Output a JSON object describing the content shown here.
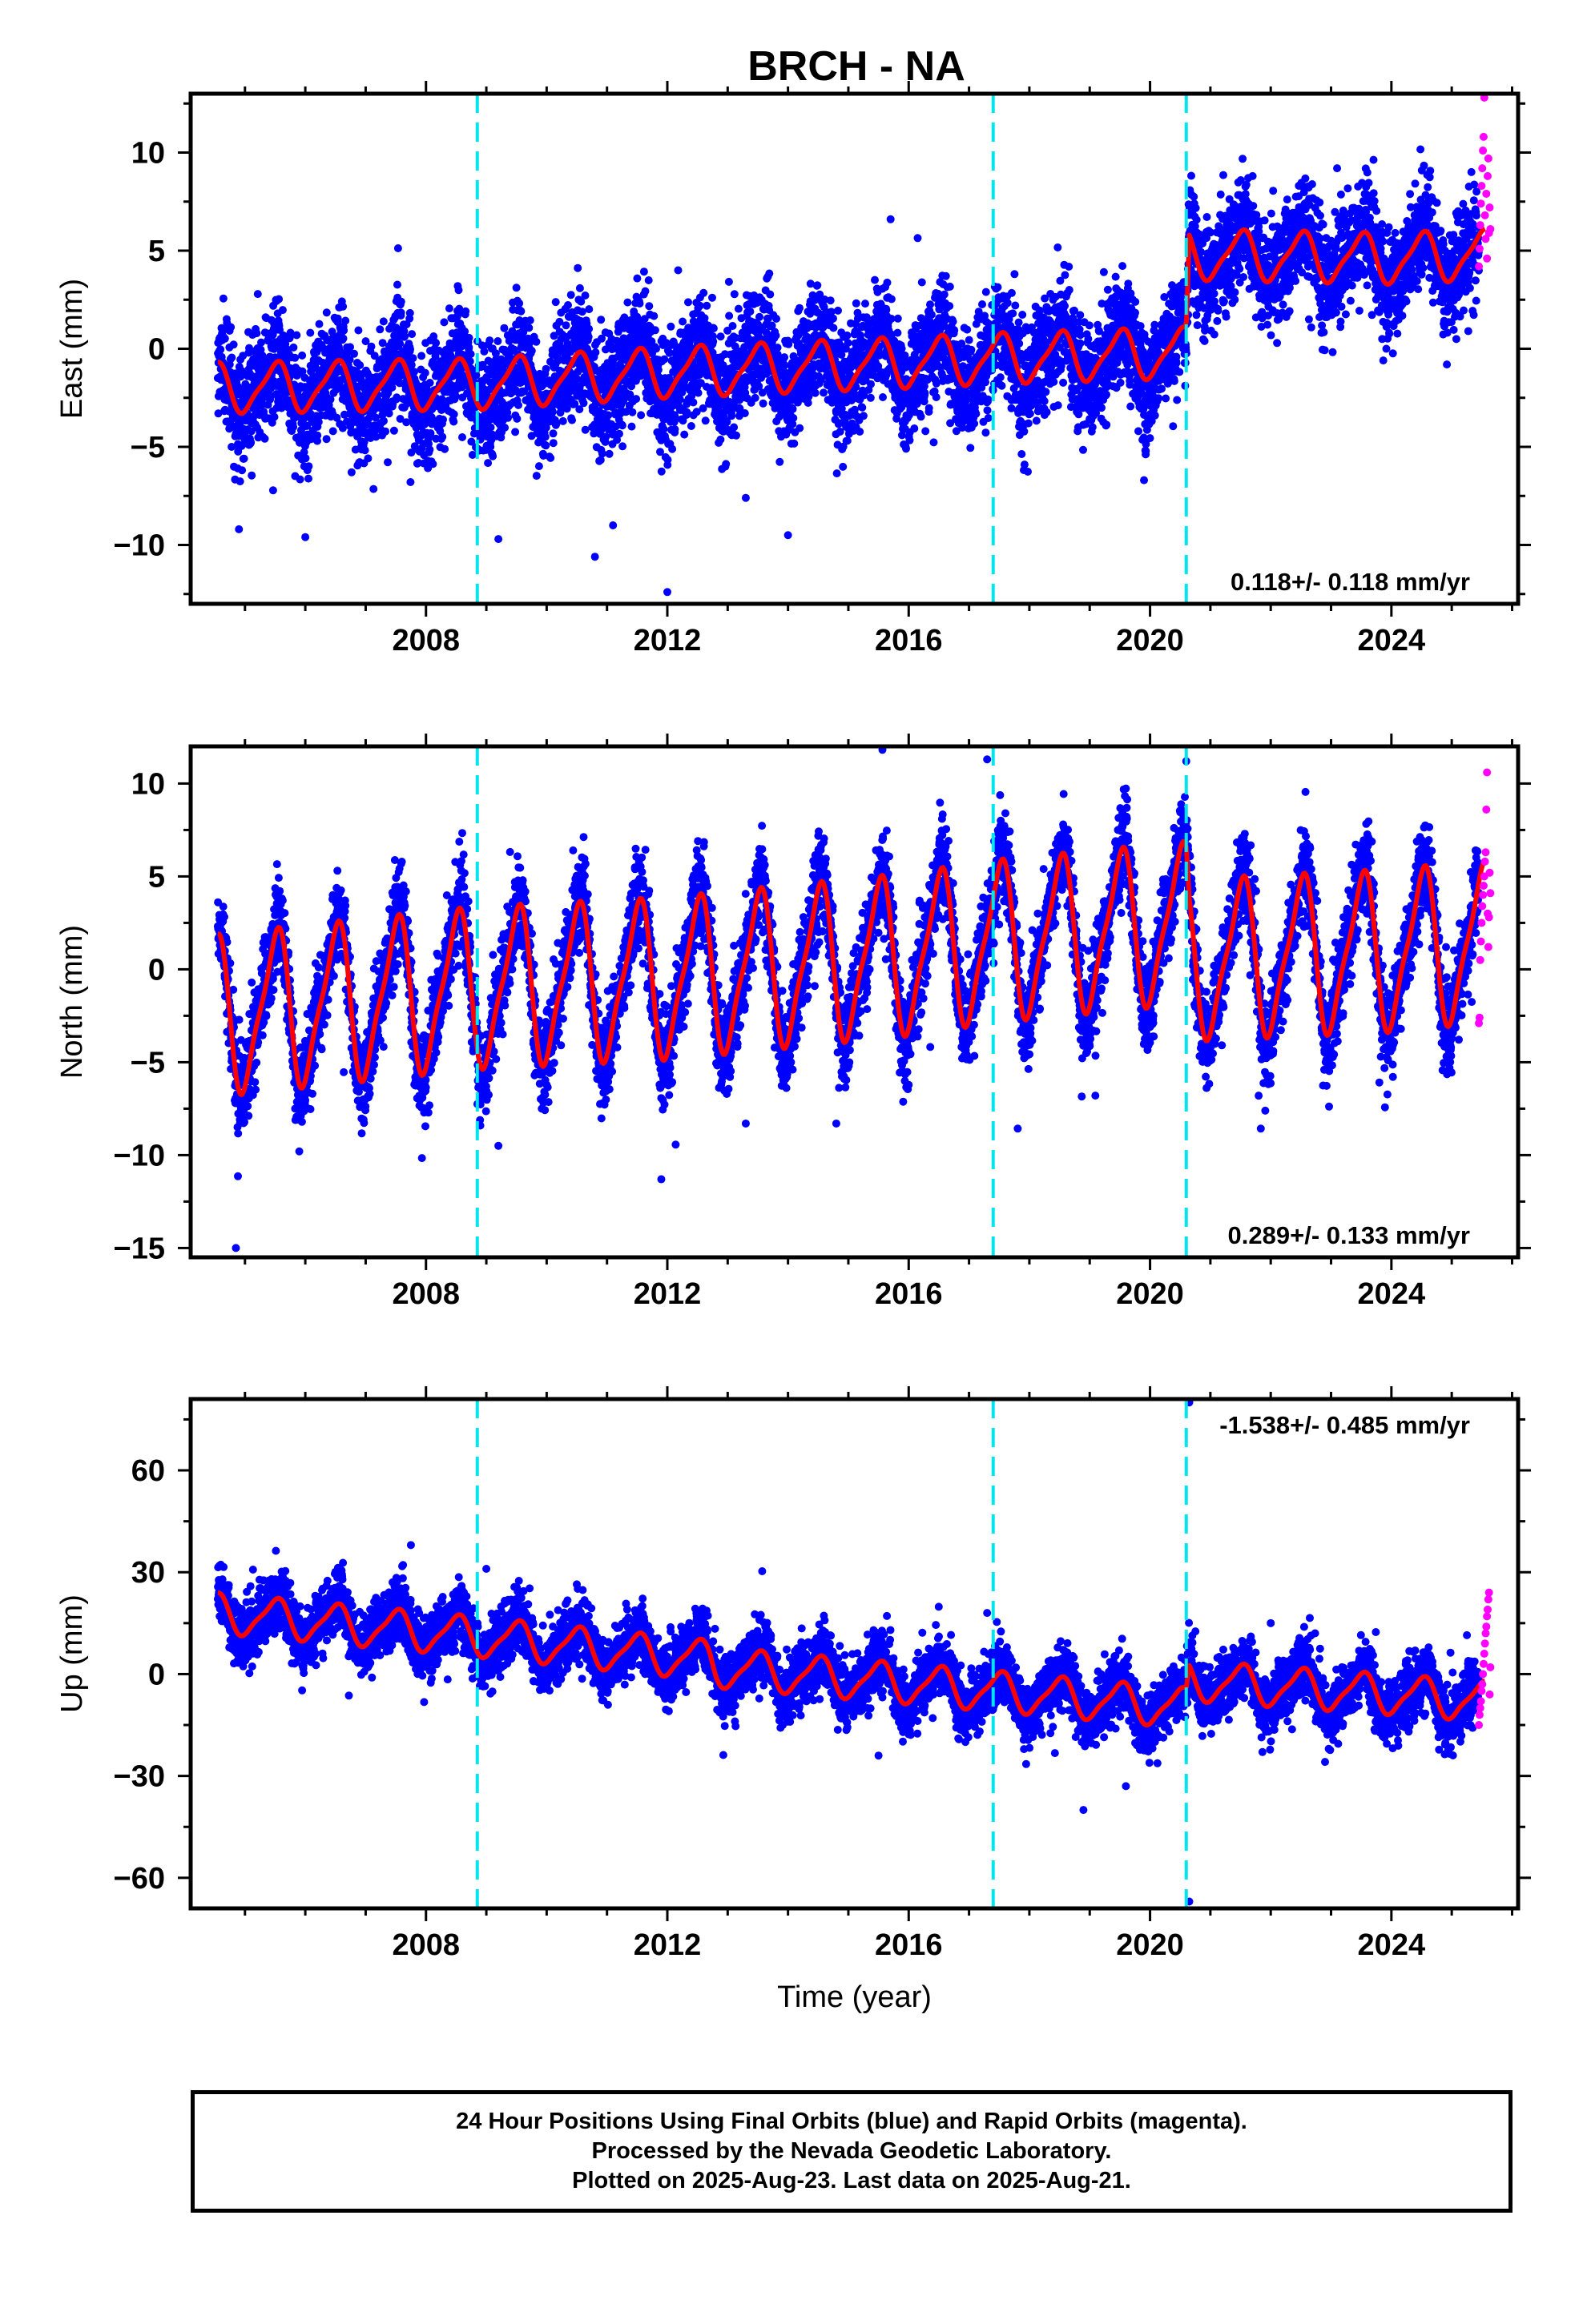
{
  "colors": {
    "final_orbits": "#0000ff",
    "rapid_orbits": "#ff00ff",
    "model": "#ff0000",
    "equipment_change": "#00e5ee",
    "frame": "#000000"
  },
  "caption": {
    "line1": "24 Hour Positions Using Final Orbits (blue) and Rapid Orbits (magenta).",
    "line2": "Processed by the Nevada Geodetic Laboratory.",
    "line3": "Plotted on 2025-Aug-23. Last data on 2025-Aug-21."
  },
  "chart_data": [
    {
      "type": "scatter",
      "title": "BRCH - NA",
      "ylabel": "East (mm)",
      "xlabel": "",
      "xlim": [
        2004.1,
        2026.1
      ],
      "ylim": [
        -13,
        13
      ],
      "xticks": [
        2008,
        2012,
        2016,
        2020,
        2024
      ],
      "yticks": [
        -10,
        -5,
        0,
        5,
        10
      ],
      "rate_label": "0.118+/- 0.118 mm/yr",
      "rate_position": "bottom-right",
      "steps_years": [
        2008.85,
        2017.4,
        2020.6
      ],
      "series": [
        {
          "name": "Final Orbits",
          "kind": "points",
          "sample_count": 7600,
          "trend_anchor_points": [
            [
              2004.5,
              -2.0
            ],
            [
              2008.85,
              -1.8
            ],
            [
              2012.0,
              -1.2
            ],
            [
              2016.0,
              -0.7
            ],
            [
              2017.4,
              -0.5
            ],
            [
              2020.6,
              -0.2
            ],
            [
              2020.65,
              4.8
            ],
            [
              2024.0,
              4.6
            ],
            [
              2025.5,
              4.8
            ]
          ],
          "seasonal_amplitude": 1.3,
          "scatter_sd": 1.4,
          "outliers": [
            [
              2004.9,
              -9.2
            ],
            [
              2006.0,
              -9.6
            ],
            [
              2009.2,
              -9.7
            ],
            [
              2010.8,
              -10.6
            ],
            [
              2011.1,
              -9.0
            ],
            [
              2012.0,
              -12.4
            ],
            [
              2013.3,
              -7.6
            ],
            [
              2014.0,
              -9.5
            ],
            [
              2015.7,
              6.6
            ],
            [
              2018.8,
              -4.2
            ],
            [
              2019.9,
              -6.7
            ],
            [
              2021.7,
              8.8
            ],
            [
              2023.1,
              9.2
            ]
          ]
        },
        {
          "name": "Rapid Orbits",
          "kind": "points",
          "x_range": [
            2025.45,
            2025.64
          ],
          "values": [
            4.2,
            5.1,
            6.3,
            7.4,
            8.3,
            9.2,
            10.1,
            10.8,
            12.8,
            6.8,
            5.6,
            7.9,
            4.6,
            8.8,
            9.7,
            5.9,
            7.2,
            6.1
          ]
        },
        {
          "name": "Model",
          "kind": "line",
          "seasonal_amplitude": 1.2
        }
      ]
    },
    {
      "type": "scatter",
      "title": "",
      "ylabel": "North (mm)",
      "xlabel": "",
      "xlim": [
        2004.1,
        2026.1
      ],
      "ylim": [
        -15.5,
        12
      ],
      "xticks": [
        2008,
        2012,
        2016,
        2020,
        2024
      ],
      "yticks": [
        -15,
        -10,
        -5,
        0,
        5,
        10
      ],
      "rate_label": "0.289+/- 0.133 mm/yr",
      "rate_position": "bottom-right",
      "steps_years": [
        2008.85,
        2017.4,
        2020.6
      ],
      "series": [
        {
          "name": "Final Orbits",
          "kind": "points",
          "sample_count": 7600,
          "trend_anchor_points": [
            [
              2004.5,
              -2.5
            ],
            [
              2008.85,
              -1.0
            ],
            [
              2012.0,
              -0.5
            ],
            [
              2016.0,
              0.8
            ],
            [
              2017.4,
              1.5
            ],
            [
              2020.6,
              2.5
            ],
            [
              2020.65,
              0.5
            ],
            [
              2024.0,
              1.0
            ],
            [
              2025.5,
              1.5
            ]
          ],
          "seasonal_amplitude": 4.2,
          "scatter_sd": 1.2,
          "outliers": [
            [
              2004.85,
              -15.0
            ],
            [
              2005.9,
              -9.8
            ],
            [
              2009.2,
              -9.5
            ],
            [
              2011.9,
              -11.3
            ],
            [
              2012.5,
              6.1
            ],
            [
              2013.3,
              -8.3
            ],
            [
              2014.8,
              -8.3
            ],
            [
              2017.3,
              11.3
            ],
            [
              2020.6,
              11.2
            ],
            [
              2021.8,
              -6.8
            ]
          ]
        },
        {
          "name": "Rapid Orbits",
          "kind": "points",
          "x_range": [
            2025.45,
            2025.64
          ],
          "values": [
            -2.9,
            -2.6,
            0.5,
            1.5,
            2.5,
            3.4,
            4.0,
            4.5,
            5.0,
            5.8,
            6.3,
            8.6,
            10.6,
            3.0,
            1.2,
            2.8,
            5.2,
            4.1
          ]
        },
        {
          "name": "Model",
          "kind": "line",
          "seasonal_amplitude": 4.0
        }
      ]
    },
    {
      "type": "scatter",
      "title": "",
      "ylabel": "Up (mm)",
      "xlabel": "Time (year)",
      "xlim": [
        2004.1,
        2026.1
      ],
      "ylim": [
        -69,
        81
      ],
      "xticks": [
        2008,
        2012,
        2016,
        2020,
        2024
      ],
      "yticks": [
        -60,
        -30,
        0,
        30,
        60
      ],
      "rate_label": "-1.538+/- 0.485 mm/yr",
      "rate_position": "top-right",
      "steps_years": [
        2008.85,
        2017.4,
        2020.6
      ],
      "series": [
        {
          "name": "Final Orbits",
          "kind": "points",
          "sample_count": 7600,
          "trend_anchor_points": [
            [
              2004.5,
              18
            ],
            [
              2008.85,
              11
            ],
            [
              2012.7,
              4
            ],
            [
              2012.8,
              2
            ],
            [
              2017.4,
              -5
            ],
            [
              2020.6,
              -10
            ],
            [
              2020.65,
              -2
            ],
            [
              2024.0,
              -6
            ],
            [
              2025.5,
              -8
            ]
          ],
          "seasonal_amplitude": 6.0,
          "scatter_sd": 4.5,
          "outliers": [
            [
              2007.75,
              38
            ],
            [
              2009.0,
              31
            ],
            [
              2015.5,
              -24
            ],
            [
              2017.3,
              18
            ],
            [
              2019.6,
              -33
            ],
            [
              2020.65,
              80
            ],
            [
              2020.65,
              -67
            ],
            [
              2022.0,
              15
            ]
          ]
        },
        {
          "name": "Rapid Orbits",
          "kind": "points",
          "x_range": [
            2025.45,
            2025.64
          ],
          "values": [
            -15,
            -12,
            -10,
            -8,
            -5,
            -3,
            0,
            3,
            6,
            9,
            12,
            14,
            17,
            19,
            22,
            24,
            -6,
            2
          ]
        },
        {
          "name": "Model",
          "kind": "line",
          "seasonal_amplitude": 5.5
        }
      ]
    }
  ]
}
